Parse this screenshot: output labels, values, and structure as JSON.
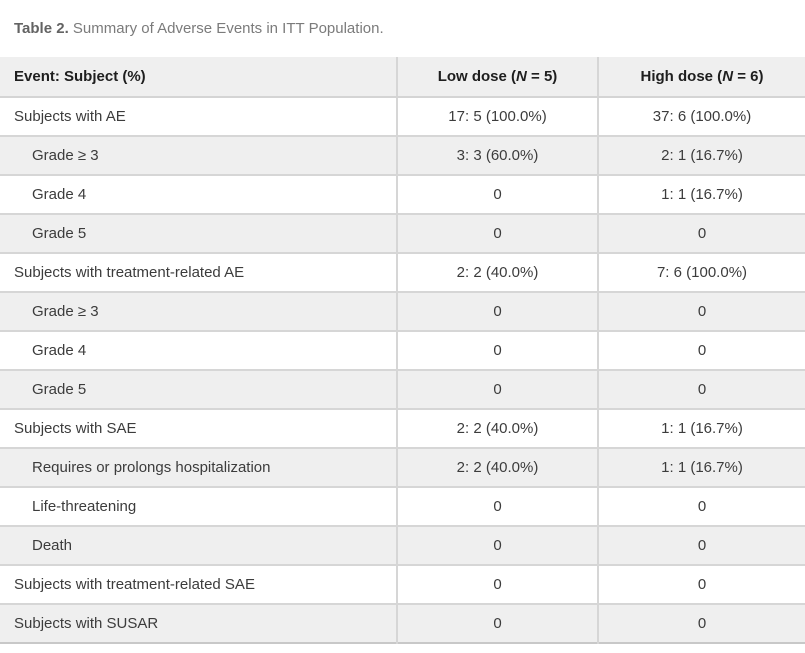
{
  "caption": {
    "label": "Table 2.",
    "text": " Summary of Adverse Events in ITT Population."
  },
  "table": {
    "columns": [
      {
        "label": "Event: Subject (%)"
      },
      {
        "prefix": "Low dose (",
        "n": "N",
        "suffix": " = 5)"
      },
      {
        "prefix": "High dose (",
        "n": "N",
        "suffix": " = 6)"
      }
    ],
    "rows": [
      {
        "event": "Subjects with AE",
        "low": "17: 5 (100.0%)",
        "high": "37: 6 (100.0%)"
      },
      {
        "event": "Grade ≥ 3",
        "low": "3: 3 (60.0%)",
        "high": "2: 1 (16.7%)"
      },
      {
        "event": "Grade 4",
        "low": "0",
        "high": "1: 1 (16.7%)"
      },
      {
        "event": "Grade 5",
        "low": "0",
        "high": "0"
      },
      {
        "event": "Subjects with treatment-related AE",
        "low": "2: 2 (40.0%)",
        "high": "7: 6 (100.0%)"
      },
      {
        "event": "Grade ≥ 3",
        "low": "0",
        "high": "0"
      },
      {
        "event": "Grade 4",
        "low": "0",
        "high": "0"
      },
      {
        "event": "Grade 5",
        "low": "0",
        "high": "0"
      },
      {
        "event": "Subjects with SAE",
        "low": "2: 2 (40.0%)",
        "high": "1: 1 (16.7%)"
      },
      {
        "event": "Requires or prolongs hospitalization",
        "low": "2: 2 (40.0%)",
        "high": "1: 1 (16.7%)"
      },
      {
        "event": "Life-threatening",
        "low": "0",
        "high": "0"
      },
      {
        "event": "Death",
        "low": "0",
        "high": "0"
      },
      {
        "event": "Subjects with treatment-related SAE",
        "low": "0",
        "high": "0"
      },
      {
        "event": "Subjects with SUSAR",
        "low": "0",
        "high": "0"
      }
    ],
    "colors": {
      "stripe_bg": "#efefef",
      "header_bg": "#efefef",
      "grid_line": "#d6d6d6",
      "bottom_border": "#c8c8c8",
      "body_text": "#3c3c3c",
      "caption_text": "#7b7b7b"
    }
  }
}
